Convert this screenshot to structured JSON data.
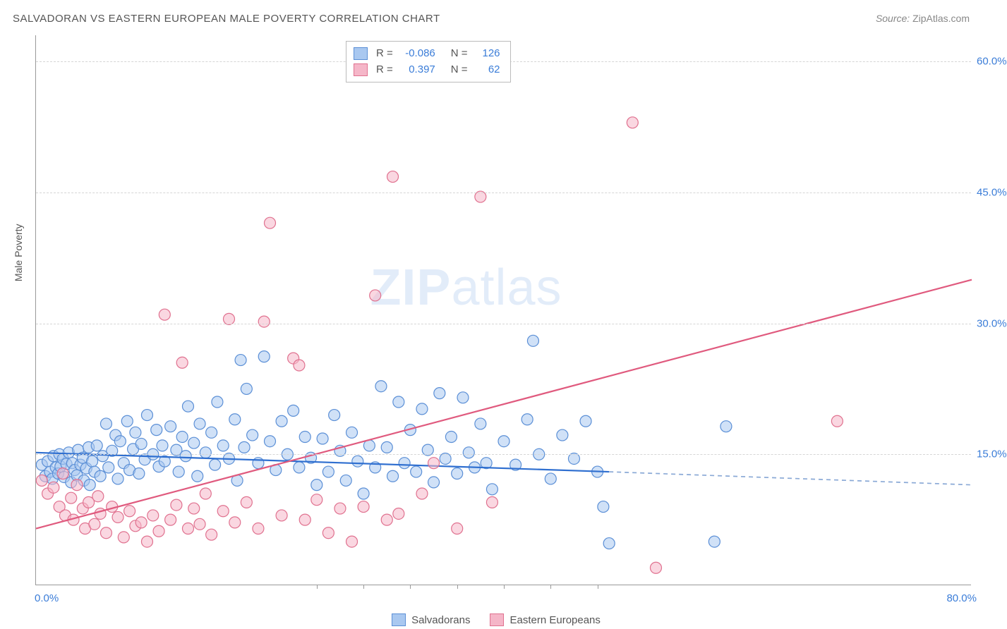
{
  "title": "SALVADORAN VS EASTERN EUROPEAN MALE POVERTY CORRELATION CHART",
  "source": {
    "label": "Source:",
    "name": "ZipAtlas.com"
  },
  "watermark": {
    "bold": "ZIP",
    "rest": "atlas"
  },
  "yaxis_title": "Male Poverty",
  "chart": {
    "type": "scatter",
    "xlim": [
      0,
      80
    ],
    "ylim": [
      0,
      63
    ],
    "x_origin_label": "0.0%",
    "x_max_label": "80.0%",
    "y_ticks": [
      {
        "value": 15,
        "label": "15.0%"
      },
      {
        "value": 30,
        "label": "30.0%"
      },
      {
        "value": 45,
        "label": "45.0%"
      },
      {
        "value": 60,
        "label": "60.0%"
      }
    ],
    "x_minor_ticks": [
      24,
      28,
      32,
      36,
      40,
      44,
      48
    ],
    "background_color": "#ffffff",
    "grid_color": "#d5d5d5",
    "marker_radius": 8,
    "marker_stroke_width": 1.2,
    "series": [
      {
        "id": "salvadorans",
        "label": "Salvadorans",
        "fill": "#a9c8f0",
        "stroke": "#5b8fd6",
        "fill_opacity": 0.55,
        "r_value": "-0.086",
        "n_value": "126",
        "regression": {
          "x1": 0,
          "y1": 15.2,
          "x2": 49,
          "y2": 13.0,
          "solid_color": "#2f6fd0",
          "dash_to_x": 80,
          "dash_y": 11.5,
          "dash_color": "#8aa9d6",
          "width": 2.2
        },
        "points": [
          [
            0.5,
            13.8
          ],
          [
            0.8,
            12.5
          ],
          [
            1.0,
            14.2
          ],
          [
            1.2,
            13.0
          ],
          [
            1.4,
            12.2
          ],
          [
            1.5,
            14.8
          ],
          [
            1.7,
            13.5
          ],
          [
            1.9,
            12.8
          ],
          [
            2.0,
            15.0
          ],
          [
            2.1,
            13.6
          ],
          [
            2.3,
            14.5
          ],
          [
            2.4,
            12.4
          ],
          [
            2.6,
            13.9
          ],
          [
            2.8,
            15.2
          ],
          [
            3.0,
            11.8
          ],
          [
            3.1,
            14.0
          ],
          [
            3.3,
            13.2
          ],
          [
            3.5,
            12.6
          ],
          [
            3.6,
            15.5
          ],
          [
            3.8,
            13.8
          ],
          [
            4.0,
            14.6
          ],
          [
            4.1,
            12.0
          ],
          [
            4.3,
            13.4
          ],
          [
            4.5,
            15.8
          ],
          [
            4.6,
            11.5
          ],
          [
            4.8,
            14.2
          ],
          [
            5.0,
            13.0
          ],
          [
            5.2,
            16.0
          ],
          [
            5.5,
            12.5
          ],
          [
            5.7,
            14.8
          ],
          [
            6.0,
            18.5
          ],
          [
            6.2,
            13.5
          ],
          [
            6.5,
            15.4
          ],
          [
            6.8,
            17.2
          ],
          [
            7.0,
            12.2
          ],
          [
            7.2,
            16.5
          ],
          [
            7.5,
            14.0
          ],
          [
            7.8,
            18.8
          ],
          [
            8.0,
            13.2
          ],
          [
            8.3,
            15.6
          ],
          [
            8.5,
            17.5
          ],
          [
            8.8,
            12.8
          ],
          [
            9.0,
            16.2
          ],
          [
            9.3,
            14.4
          ],
          [
            9.5,
            19.5
          ],
          [
            10.0,
            15.0
          ],
          [
            10.3,
            17.8
          ],
          [
            10.5,
            13.6
          ],
          [
            10.8,
            16.0
          ],
          [
            11.0,
            14.2
          ],
          [
            11.5,
            18.2
          ],
          [
            12.0,
            15.5
          ],
          [
            12.2,
            13.0
          ],
          [
            12.5,
            17.0
          ],
          [
            12.8,
            14.8
          ],
          [
            13.0,
            20.5
          ],
          [
            13.5,
            16.3
          ],
          [
            13.8,
            12.5
          ],
          [
            14.0,
            18.5
          ],
          [
            14.5,
            15.2
          ],
          [
            15.0,
            17.5
          ],
          [
            15.3,
            13.8
          ],
          [
            15.5,
            21.0
          ],
          [
            16.0,
            16.0
          ],
          [
            16.5,
            14.5
          ],
          [
            17.0,
            19.0
          ],
          [
            17.2,
            12.0
          ],
          [
            17.5,
            25.8
          ],
          [
            17.8,
            15.8
          ],
          [
            18.0,
            22.5
          ],
          [
            18.5,
            17.2
          ],
          [
            19.0,
            14.0
          ],
          [
            19.5,
            26.2
          ],
          [
            20.0,
            16.5
          ],
          [
            20.5,
            13.2
          ],
          [
            21.0,
            18.8
          ],
          [
            21.5,
            15.0
          ],
          [
            22.0,
            20.0
          ],
          [
            22.5,
            13.5
          ],
          [
            23.0,
            17.0
          ],
          [
            23.5,
            14.6
          ],
          [
            24.0,
            11.5
          ],
          [
            24.5,
            16.8
          ],
          [
            25.0,
            13.0
          ],
          [
            25.5,
            19.5
          ],
          [
            26.0,
            15.4
          ],
          [
            26.5,
            12.0
          ],
          [
            27.0,
            17.5
          ],
          [
            27.5,
            14.2
          ],
          [
            28.0,
            10.5
          ],
          [
            28.5,
            16.0
          ],
          [
            29.0,
            13.5
          ],
          [
            29.5,
            22.8
          ],
          [
            30.0,
            15.8
          ],
          [
            30.5,
            12.5
          ],
          [
            31.0,
            21.0
          ],
          [
            31.5,
            14.0
          ],
          [
            32.0,
            17.8
          ],
          [
            32.5,
            13.0
          ],
          [
            33.0,
            20.2
          ],
          [
            33.5,
            15.5
          ],
          [
            34.0,
            11.8
          ],
          [
            34.5,
            22.0
          ],
          [
            35.0,
            14.5
          ],
          [
            35.5,
            17.0
          ],
          [
            36.0,
            12.8
          ],
          [
            36.5,
            21.5
          ],
          [
            37.0,
            15.2
          ],
          [
            37.5,
            13.5
          ],
          [
            38.0,
            18.5
          ],
          [
            38.5,
            14.0
          ],
          [
            39.0,
            11.0
          ],
          [
            40.0,
            16.5
          ],
          [
            41.0,
            13.8
          ],
          [
            42.0,
            19.0
          ],
          [
            42.5,
            28.0
          ],
          [
            43.0,
            15.0
          ],
          [
            44.0,
            12.2
          ],
          [
            45.0,
            17.2
          ],
          [
            46.0,
            14.5
          ],
          [
            47.0,
            18.8
          ],
          [
            48.0,
            13.0
          ],
          [
            49.0,
            4.8
          ],
          [
            59.0,
            18.2
          ],
          [
            58.0,
            5.0
          ],
          [
            48.5,
            9.0
          ]
        ]
      },
      {
        "id": "eastern_europeans",
        "label": "Eastern Europeans",
        "fill": "#f5b6c8",
        "stroke": "#e0718f",
        "fill_opacity": 0.55,
        "r_value": "0.397",
        "n_value": "62",
        "regression": {
          "x1": 0,
          "y1": 6.5,
          "x2": 80,
          "y2": 35.0,
          "solid_color": "#e05a7e",
          "width": 2.2
        },
        "points": [
          [
            0.5,
            12.0
          ],
          [
            1.0,
            10.5
          ],
          [
            1.5,
            11.2
          ],
          [
            2.0,
            9.0
          ],
          [
            2.3,
            12.8
          ],
          [
            2.5,
            8.0
          ],
          [
            3.0,
            10.0
          ],
          [
            3.2,
            7.5
          ],
          [
            3.5,
            11.5
          ],
          [
            4.0,
            8.8
          ],
          [
            4.2,
            6.5
          ],
          [
            4.5,
            9.5
          ],
          [
            5.0,
            7.0
          ],
          [
            5.3,
            10.2
          ],
          [
            5.5,
            8.2
          ],
          [
            6.0,
            6.0
          ],
          [
            6.5,
            9.0
          ],
          [
            7.0,
            7.8
          ],
          [
            7.5,
            5.5
          ],
          [
            8.0,
            8.5
          ],
          [
            8.5,
            6.8
          ],
          [
            9.0,
            7.2
          ],
          [
            9.5,
            5.0
          ],
          [
            10.0,
            8.0
          ],
          [
            10.5,
            6.2
          ],
          [
            11.0,
            31.0
          ],
          [
            11.5,
            7.5
          ],
          [
            12.0,
            9.2
          ],
          [
            12.5,
            25.5
          ],
          [
            13.0,
            6.5
          ],
          [
            13.5,
            8.8
          ],
          [
            14.0,
            7.0
          ],
          [
            14.5,
            10.5
          ],
          [
            15.0,
            5.8
          ],
          [
            16.0,
            8.5
          ],
          [
            16.5,
            30.5
          ],
          [
            17.0,
            7.2
          ],
          [
            18.0,
            9.5
          ],
          [
            19.0,
            6.5
          ],
          [
            19.5,
            30.2
          ],
          [
            20.0,
            41.5
          ],
          [
            21.0,
            8.0
          ],
          [
            22.0,
            26.0
          ],
          [
            22.5,
            25.2
          ],
          [
            23.0,
            7.5
          ],
          [
            24.0,
            9.8
          ],
          [
            25.0,
            6.0
          ],
          [
            26.0,
            8.8
          ],
          [
            27.0,
            5.0
          ],
          [
            28.0,
            9.0
          ],
          [
            29.0,
            33.2
          ],
          [
            30.0,
            7.5
          ],
          [
            30.5,
            46.8
          ],
          [
            31.0,
            8.2
          ],
          [
            33.0,
            10.5
          ],
          [
            34.0,
            14.0
          ],
          [
            36.0,
            6.5
          ],
          [
            38.0,
            44.5
          ],
          [
            39.0,
            9.5
          ],
          [
            51.0,
            53.0
          ],
          [
            53.0,
            2.0
          ],
          [
            68.5,
            18.8
          ]
        ]
      }
    ]
  }
}
